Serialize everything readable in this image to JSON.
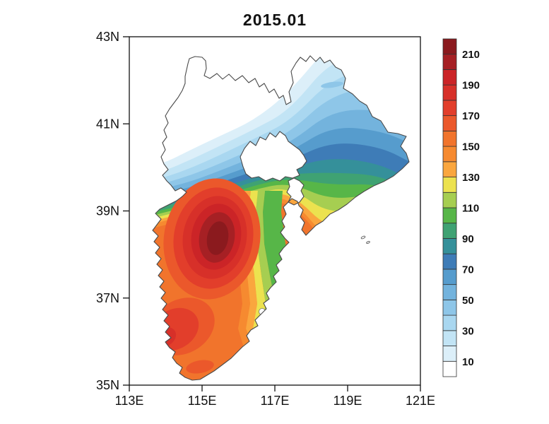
{
  "title": "2015.01",
  "axes": {
    "x_ticks": [
      {
        "label": "113E",
        "lon": 113
      },
      {
        "label": "115E",
        "lon": 115
      },
      {
        "label": "117E",
        "lon": 117
      },
      {
        "label": "119E",
        "lon": 119
      },
      {
        "label": "121E",
        "lon": 121
      }
    ],
    "y_ticks": [
      {
        "label": "43N",
        "lat": 43
      },
      {
        "label": "41N",
        "lat": 41
      },
      {
        "label": "39N",
        "lat": 39
      },
      {
        "label": "37N",
        "lat": 37
      },
      {
        "label": "35N",
        "lat": 35
      }
    ]
  },
  "colorbar": {
    "tick_labels": [
      "210",
      "190",
      "170",
      "150",
      "130",
      "110",
      "90",
      "70",
      "50",
      "30",
      "10"
    ],
    "tick_values": [
      210,
      190,
      170,
      150,
      130,
      110,
      90,
      70,
      50,
      30,
      10
    ],
    "cell_count": 22,
    "palette_bottom_to_top": [
      "#FFFFFF",
      "#DCEFF9",
      "#C2E4F5",
      "#A9D7F0",
      "#8EC6E8",
      "#73B3DD",
      "#569CCD",
      "#3E7CB7",
      "#35909A",
      "#3FA273",
      "#57B648",
      "#A6CE51",
      "#ECE24F",
      "#FAA63E",
      "#F68A30",
      "#F1742C",
      "#EB582B",
      "#E23E2B",
      "#D73029",
      "#CB2427",
      "#A62024",
      "#8B1A1E"
    ]
  },
  "chart_data": {
    "type": "filled-contour-map",
    "title": "2015.01",
    "region": "Beijing-Tianjin-Hebei (Jing-Jin-Ji) province outline with Beijing and Tianjin shown as blank cutouts",
    "lon_range_deg_east": [
      113,
      121
    ],
    "lat_range_deg_north": [
      35,
      43
    ],
    "contour_levels": [
      10,
      20,
      30,
      40,
      50,
      60,
      70,
      80,
      90,
      100,
      110,
      120,
      130,
      140,
      150,
      160,
      170,
      180,
      190,
      200,
      210
    ],
    "contour_interval": 10,
    "colorbar_range": [
      10,
      210
    ],
    "legend_position": "right vertical colorbar",
    "features": [
      {
        "name": "field minimum",
        "value": "< 10",
        "location": "northwest lobe, ~114E-115E, 41.5N-42.5N (white area)"
      },
      {
        "name": "north field",
        "value": "10-80",
        "location": "northern lobes, blue bands increasing southeastward"
      },
      {
        "name": "transition belt",
        "value": "80-130",
        "location": "teal/green/yellow bands near 39.5N-40N"
      },
      {
        "name": "primary maximum",
        "value": "> 210",
        "location": "bullseye centered ~115.5E, 38.4N"
      },
      {
        "name": "secondary maximum",
        "value": "~190",
        "location": "southwest blob ~114.3E, 36.4N"
      },
      {
        "name": "southern field",
        "value": "150-160",
        "location": "broad orange across southern lobe"
      },
      {
        "name": "eastern pocket",
        "value": "90-130",
        "location": "green/yellow-green area ~117.5E-119E, 38.5N-39.8N"
      }
    ]
  }
}
